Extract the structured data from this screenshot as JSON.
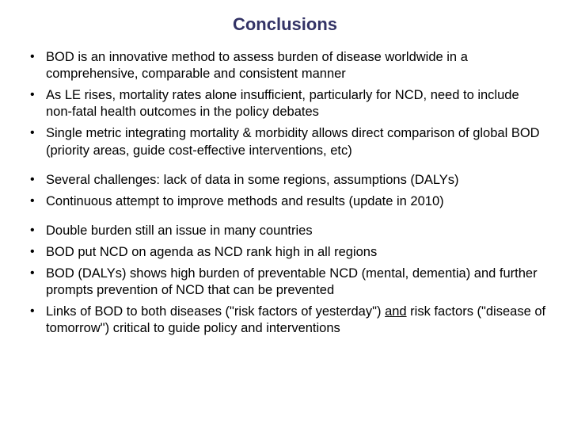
{
  "title": "Conclusions",
  "title_color": "#333366",
  "text_color": "#000000",
  "background_color": "#ffffff",
  "font_family": "Arial",
  "title_fontsize": 22,
  "body_fontsize": 16.5,
  "bullets": [
    {
      "text": "BOD is an innovative method to assess burden of disease worldwide in a comprehensive, comparable and consistent manner",
      "gap_after": "sm"
    },
    {
      "text": "As LE rises, mortality rates alone insufficient, particularly for NCD, need to include non-fatal health outcomes in the policy debates",
      "gap_after": "sm"
    },
    {
      "text": "Single metric integrating mortality & morbidity allows direct comparison of global BOD (priority areas, guide cost-effective interventions, etc)",
      "gap_after": "md"
    },
    {
      "text": "Several challenges: lack of data in some regions, assumptions (DALYs)",
      "gap_after": "sm"
    },
    {
      "text": "Continuous attempt to improve methods and results (update in 2010)",
      "gap_after": "md"
    },
    {
      "text": "Double burden still an issue in many countries",
      "gap_after": "sm"
    },
    {
      "text": "BOD put NCD on agenda as NCD rank high in all regions",
      "gap_after": "sm"
    },
    {
      "text": "BOD (DALYs) shows high burden of preventable NCD (mental, dementia) and further prompts prevention of NCD that can be prevented",
      "gap_after": "sm"
    },
    {
      "html_parts": [
        {
          "t": "Links of BOD to both diseases (\"risk factors of yesterday\") "
        },
        {
          "t": "and",
          "u": true
        },
        {
          "t": " risk factors (\"disease of tomorrow\") critical to guide policy and interventions"
        }
      ],
      "gap_after": "none"
    }
  ]
}
